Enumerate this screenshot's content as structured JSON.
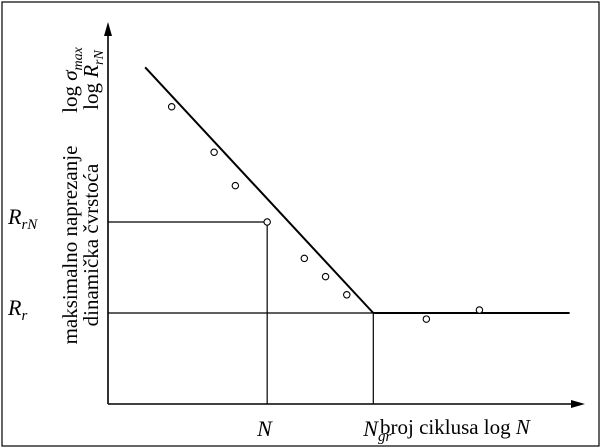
{
  "chart_data": {
    "type": "line",
    "ylabel_line1": "maksimalno naprezanje",
    "ylabel_line2": "dinamička čvrstoća",
    "ylabel_sym1": "log σmax",
    "ylabel_sym1_parts": {
      "prefix": "log ",
      "sym": "σ",
      "sub": "max"
    },
    "ylabel_sym2": "log RrN",
    "ylabel_sym2_parts": {
      "prefix": "log ",
      "sym": "R",
      "sub": "rN"
    },
    "xlabel": "broj ciklusa log N",
    "xlabel_parts": {
      "text": "broj ciklusa log ",
      "sym": "N"
    },
    "x_ticks": [
      {
        "label": "N",
        "sym": "N",
        "sub": "",
        "x": 3
      },
      {
        "label": "Ngr",
        "sym": "N",
        "sub": "gr",
        "x": 5
      }
    ],
    "y_ticks": [
      {
        "label": "RrN",
        "sym": "R",
        "sub": "rN",
        "y": 6
      },
      {
        "label": "Rr",
        "sym": "R",
        "sub": "r",
        "y": 3
      }
    ],
    "xlim": [
      0,
      8.5
    ],
    "ylim": [
      0,
      12
    ],
    "series": [
      {
        "segments": [
          {
            "x": [
              0.7,
              5
            ],
            "y": [
              11.1,
              3
            ]
          },
          {
            "x": [
              5,
              8.7
            ],
            "y": [
              3,
              3
            ]
          }
        ]
      }
    ],
    "points": [
      {
        "x": 1.2,
        "y": 9.8
      },
      {
        "x": 2.0,
        "y": 8.3
      },
      {
        "x": 2.4,
        "y": 7.2
      },
      {
        "x": 3.0,
        "y": 6.0
      },
      {
        "x": 3.7,
        "y": 4.8
      },
      {
        "x": 4.1,
        "y": 4.2
      },
      {
        "x": 4.5,
        "y": 3.6
      },
      {
        "x": 6.0,
        "y": 2.8
      },
      {
        "x": 7.0,
        "y": 3.1
      }
    ],
    "guides": [
      {
        "from": "y_tick",
        "y": 6,
        "to_x": 3
      },
      {
        "from": "y_tick",
        "y": 3,
        "to_x": 5
      }
    ],
    "grid": false,
    "legend": "none"
  }
}
